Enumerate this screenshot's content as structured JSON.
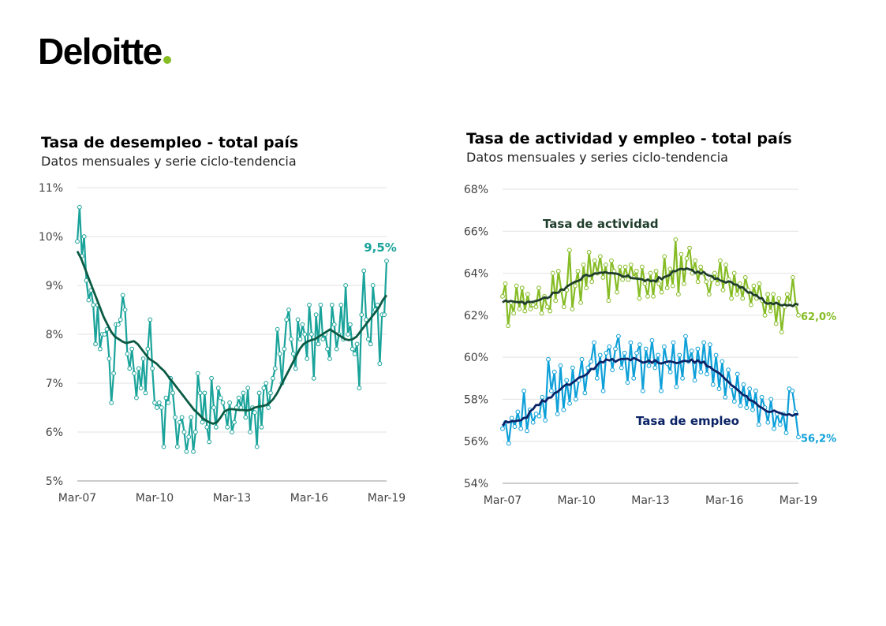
{
  "brand": {
    "name": "Deloitte",
    "accent": "#86BC25"
  },
  "chart_data": [
    {
      "type": "line",
      "title": "Tasa de desempleo - total país",
      "subtitle": "Datos mensuales y serie ciclo-tendencia",
      "x_ticks": [
        "Mar-07",
        "Mar-10",
        "Mar-13",
        "Mar-16",
        "Mar-19"
      ],
      "y_ticks": [
        "5%",
        "6%",
        "7%",
        "8%",
        "9%",
        "10%",
        "11%"
      ],
      "ylim": [
        5,
        11
      ],
      "x_range": [
        "2007-03",
        "2019-03"
      ],
      "grid": true,
      "end_label": "9,5%",
      "colors": {
        "monthly": "#1AA39A",
        "trend": "#0B5A44"
      },
      "series": [
        {
          "kind": "monthly",
          "values": [
            9.9,
            10.6,
            9.6,
            10.0,
            9.1,
            8.7,
            8.9,
            8.6,
            7.8,
            8.6,
            7.7,
            8.0,
            8.0,
            8.1,
            7.5,
            6.6,
            7.2,
            8.2,
            8.2,
            8.3,
            8.8,
            8.5,
            7.6,
            7.3,
            7.7,
            7.2,
            6.7,
            7.3,
            6.9,
            7.5,
            6.8,
            7.7,
            8.3,
            7.3,
            6.6,
            6.5,
            6.6,
            6.5,
            5.7,
            6.7,
            6.6,
            7.1,
            6.8,
            6.3,
            5.7,
            6.2,
            6.3,
            6.0,
            5.6,
            5.9,
            6.3,
            5.6,
            6.0,
            7.2,
            6.8,
            6.2,
            6.8,
            6.1,
            5.8,
            7.1,
            6.5,
            6.1,
            6.9,
            6.7,
            6.6,
            6.4,
            6.1,
            6.6,
            6.0,
            6.2,
            6.5,
            6.7,
            6.5,
            6.8,
            6.3,
            6.9,
            6.0,
            6.5,
            6.4,
            5.7,
            6.8,
            6.1,
            6.9,
            7.0,
            6.5,
            6.8,
            7.1,
            7.3,
            8.1,
            7.6,
            7.0,
            7.7,
            8.3,
            8.5,
            7.9,
            7.6,
            7.3,
            8.3,
            7.9,
            8.2,
            8.0,
            7.5,
            8.6,
            8.0,
            7.1,
            8.4,
            7.8,
            8.6,
            7.9,
            8.0,
            7.7,
            7.5,
            8.6,
            8.2,
            7.7,
            8.0,
            8.6,
            7.9,
            9.0,
            8.0,
            8.2,
            7.7,
            7.6,
            7.8,
            6.9,
            8.4,
            9.3,
            8.3,
            7.9,
            7.8,
            9.0,
            8.5,
            8.6,
            7.4,
            8.4,
            8.4,
            9.5
          ]
        },
        {
          "kind": "trend",
          "values": [
            9.7,
            9.55,
            9.35,
            9.15,
            8.95,
            8.75,
            8.55,
            8.35,
            8.2,
            8.05,
            7.95,
            7.9,
            7.85,
            7.82,
            7.84,
            7.86,
            7.8,
            7.7,
            7.6,
            7.5,
            7.45,
            7.4,
            7.32,
            7.25,
            7.15,
            7.05,
            6.95,
            6.85,
            6.75,
            6.65,
            6.55,
            6.45,
            6.38,
            6.3,
            6.24,
            6.2,
            6.17,
            6.2,
            6.3,
            6.42,
            6.46,
            6.47,
            6.46,
            6.45,
            6.45,
            6.44,
            6.46,
            6.5,
            6.52,
            6.53,
            6.55,
            6.6,
            6.68,
            6.8,
            6.95,
            7.1,
            7.25,
            7.4,
            7.55,
            7.7,
            7.8,
            7.85,
            7.88,
            7.9,
            7.95,
            8.0,
            8.05,
            8.1,
            8.05,
            8.0,
            7.95,
            7.9,
            7.88,
            7.9,
            7.95,
            8.05,
            8.15,
            8.25,
            8.35,
            8.45,
            8.55,
            8.7,
            8.8
          ]
        }
      ]
    },
    {
      "type": "line",
      "title": "Tasa de actividad y empleo - total país",
      "subtitle": "Datos mensuales y series ciclo-tendencia",
      "x_ticks": [
        "Mar-07",
        "Mar-10",
        "Mar-13",
        "Mar-16",
        "Mar-19"
      ],
      "y_ticks": [
        "54%",
        "56%",
        "58%",
        "60%",
        "62%",
        "64%",
        "66%",
        "68%"
      ],
      "ylim": [
        54,
        68
      ],
      "x_range": [
        "2007-03",
        "2019-03"
      ],
      "grid": true,
      "series": [
        {
          "name": "Tasa de actividad",
          "end_label": "62,0%",
          "colors": {
            "monthly": "#86BC25",
            "trend": "#1F3D2B"
          },
          "monthly": [
            62.9,
            63.5,
            61.5,
            62.6,
            62.1,
            63.4,
            62.3,
            63.3,
            62.2,
            63.0,
            62.3,
            62.5,
            62.4,
            63.3,
            62.1,
            62.9,
            62.4,
            62.2,
            64.0,
            62.7,
            64.1,
            63.2,
            62.4,
            63.2,
            65.1,
            62.3,
            63.4,
            64.1,
            62.6,
            64.4,
            63.3,
            65.0,
            63.6,
            64.6,
            64.0,
            64.8,
            63.8,
            64.4,
            62.7,
            64.6,
            64.1,
            63.1,
            64.3,
            63.7,
            64.3,
            63.7,
            64.4,
            63.8,
            64.1,
            62.8,
            64.3,
            63.5,
            62.9,
            64.0,
            62.9,
            64.1,
            63.5,
            63.1,
            64.8,
            63.3,
            64.2,
            63.4,
            65.6,
            63.0,
            64.9,
            63.5,
            64.7,
            65.2,
            64.0,
            64.6,
            63.6,
            64.3,
            64.0,
            63.6,
            63.0,
            63.7,
            64.0,
            63.5,
            64.6,
            63.2,
            64.4,
            63.7,
            62.8,
            64.0,
            63.0,
            63.5,
            62.8,
            63.8,
            63.2,
            62.5,
            63.4,
            62.8,
            63.5,
            62.7,
            62.0,
            63.0,
            62.2,
            63.0,
            61.6,
            62.8,
            61.2,
            62.4,
            63.0,
            62.6,
            63.8,
            62.5,
            62.0
          ]
        },
        {
          "name": "Tasa de empleo",
          "end_label": "56,2%",
          "colors": {
            "monthly": "#0EA0D8",
            "trend": "#0B2366"
          },
          "monthly": [
            56.6,
            56.9,
            55.9,
            57.1,
            56.7,
            57.4,
            56.6,
            58.4,
            56.5,
            57.5,
            56.9,
            57.3,
            57.2,
            58.1,
            57.0,
            59.9,
            58.4,
            59.3,
            57.3,
            59.6,
            57.5,
            58.9,
            57.8,
            59.5,
            58.0,
            58.9,
            59.9,
            58.3,
            59.5,
            59.8,
            60.7,
            59.0,
            60.1,
            58.4,
            60.2,
            60.5,
            59.4,
            60.4,
            61.0,
            59.5,
            60.2,
            58.8,
            60.7,
            59.0,
            60.2,
            60.6,
            58.4,
            60.4,
            59.6,
            60.8,
            59.5,
            60.1,
            58.4,
            60.5,
            59.7,
            59.3,
            60.7,
            58.6,
            60.1,
            59.0,
            61.0,
            59.8,
            60.3,
            58.9,
            60.4,
            59.3,
            60.7,
            59.2,
            60.6,
            58.7,
            60.1,
            58.5,
            59.8,
            58.1,
            59.4,
            58.6,
            57.9,
            59.2,
            57.7,
            58.7,
            57.6,
            58.5,
            57.5,
            58.4,
            56.8,
            58.1,
            57.6,
            56.9,
            58.0,
            56.6,
            57.3,
            56.8,
            57.3,
            56.4,
            58.5,
            58.4,
            57.4,
            56.2
          ]
        }
      ]
    }
  ]
}
